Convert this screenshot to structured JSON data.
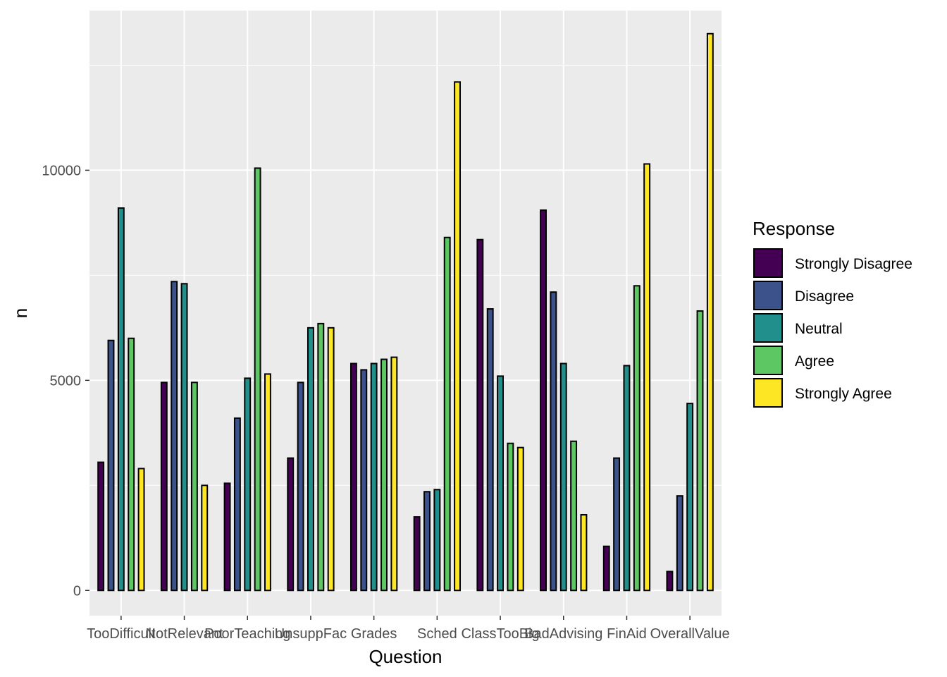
{
  "chart_data": {
    "type": "bar",
    "xlabel": "Question",
    "ylabel": "n",
    "ylim": [
      -600,
      13800
    ],
    "yticks": [
      0,
      5000,
      10000
    ],
    "ytick_labels": [
      "0",
      "5000",
      "10000"
    ],
    "categories": [
      "TooDifficult",
      "NotRelevant",
      "PoorTeaching",
      "UnsuppFac",
      "Grades",
      "Sched",
      "ClassTooBig",
      "BadAdvising",
      "FinAid",
      "OverallValue"
    ],
    "grid": true,
    "legend": {
      "title": "Response",
      "position": "right"
    },
    "series": [
      {
        "name": "Strongly Disagree",
        "color": "#440154",
        "values": [
          3050,
          4950,
          2550,
          3150,
          5400,
          1750,
          8350,
          9050,
          1050,
          450
        ]
      },
      {
        "name": "Disagree",
        "color": "#3B528B",
        "values": [
          5950,
          7350,
          4100,
          4950,
          5250,
          2350,
          6700,
          7100,
          3150,
          2250
        ]
      },
      {
        "name": "Neutral",
        "color": "#21908C",
        "values": [
          9100,
          7300,
          5050,
          6250,
          5400,
          2400,
          5100,
          5400,
          5350,
          4450
        ]
      },
      {
        "name": "Agree",
        "color": "#5DC863",
        "values": [
          6000,
          4950,
          10050,
          6350,
          5500,
          8400,
          3500,
          3550,
          7250,
          6650
        ]
      },
      {
        "name": "Strongly Agree",
        "color": "#FDE725",
        "values": [
          2900,
          2500,
          5150,
          6250,
          5550,
          12100,
          3400,
          1800,
          10150,
          13250
        ]
      }
    ]
  }
}
